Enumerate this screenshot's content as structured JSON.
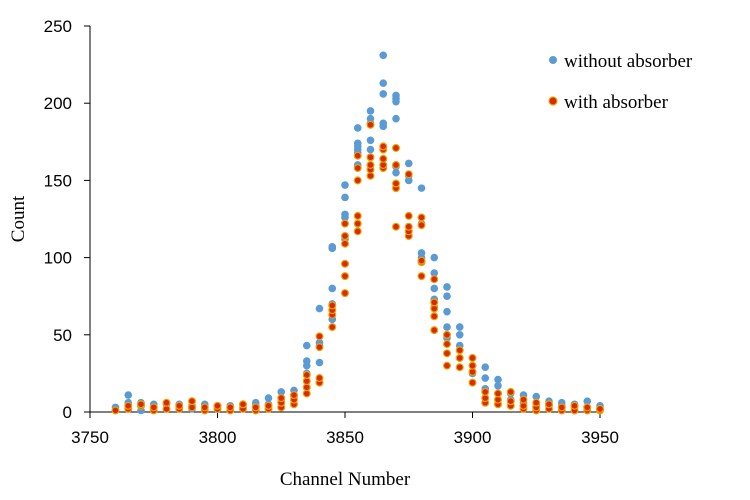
{
  "chart_data": {
    "type": "scatter",
    "title": "",
    "xlabel": "Channel Number",
    "ylabel": "Count",
    "xlim": [
      3750,
      3950
    ],
    "ylim": [
      0,
      250
    ],
    "xticks": [
      3750,
      3800,
      3850,
      3900,
      3950
    ],
    "yticks": [
      0,
      50,
      100,
      150,
      200,
      250
    ],
    "xtick_labels": [
      "3750",
      "3800",
      "3850",
      "3900",
      "3950"
    ],
    "ytick_labels": [
      "0",
      "50",
      "100",
      "150",
      "200",
      "250"
    ],
    "grid": false,
    "legend_position": "top-right",
    "series": [
      {
        "name": "without absorber",
        "color": "#5b9bd5",
        "points": [
          [
            3760,
            3
          ],
          [
            3765,
            11
          ],
          [
            3765,
            6
          ],
          [
            3770,
            1
          ],
          [
            3770,
            6
          ],
          [
            3775,
            3
          ],
          [
            3775,
            5
          ],
          [
            3780,
            2
          ],
          [
            3780,
            5
          ],
          [
            3785,
            3
          ],
          [
            3785,
            5
          ],
          [
            3790,
            2
          ],
          [
            3790,
            4
          ],
          [
            3795,
            2
          ],
          [
            3795,
            5
          ],
          [
            3800,
            2
          ],
          [
            3800,
            4
          ],
          [
            3805,
            2
          ],
          [
            3805,
            4
          ],
          [
            3810,
            3
          ],
          [
            3810,
            5
          ],
          [
            3815,
            4
          ],
          [
            3815,
            6
          ],
          [
            3820,
            5
          ],
          [
            3820,
            9
          ],
          [
            3825,
            7
          ],
          [
            3825,
            13
          ],
          [
            3830,
            10
          ],
          [
            3830,
            14
          ],
          [
            3835,
            25
          ],
          [
            3835,
            30
          ],
          [
            3835,
            33
          ],
          [
            3835,
            43
          ],
          [
            3840,
            32
          ],
          [
            3840,
            43
          ],
          [
            3840,
            45
          ],
          [
            3840,
            67
          ],
          [
            3845,
            60
          ],
          [
            3845,
            70
          ],
          [
            3845,
            80
          ],
          [
            3845,
            106
          ],
          [
            3845,
            107
          ],
          [
            3850,
            96
          ],
          [
            3850,
            112
          ],
          [
            3850,
            126
          ],
          [
            3850,
            128
          ],
          [
            3850,
            139
          ],
          [
            3850,
            147
          ],
          [
            3855,
            160
          ],
          [
            3855,
            168
          ],
          [
            3855,
            170
          ],
          [
            3855,
            172
          ],
          [
            3855,
            174
          ],
          [
            3855,
            184
          ],
          [
            3860,
            170
          ],
          [
            3860,
            176
          ],
          [
            3860,
            187
          ],
          [
            3860,
            190
          ],
          [
            3860,
            195
          ],
          [
            3865,
            185
          ],
          [
            3865,
            187
          ],
          [
            3865,
            206
          ],
          [
            3865,
            213
          ],
          [
            3865,
            231
          ],
          [
            3870,
            155
          ],
          [
            3870,
            159
          ],
          [
            3870,
            190
          ],
          [
            3870,
            201
          ],
          [
            3870,
            203
          ],
          [
            3870,
            205
          ],
          [
            3875,
            150
          ],
          [
            3875,
            153
          ],
          [
            3875,
            161
          ],
          [
            3880,
            100
          ],
          [
            3880,
            103
          ],
          [
            3880,
            122
          ],
          [
            3880,
            145
          ],
          [
            3885,
            68
          ],
          [
            3885,
            73
          ],
          [
            3885,
            80
          ],
          [
            3885,
            90
          ],
          [
            3885,
            100
          ],
          [
            3890,
            48
          ],
          [
            3890,
            55
          ],
          [
            3890,
            65
          ],
          [
            3890,
            75
          ],
          [
            3890,
            81
          ],
          [
            3895,
            40
          ],
          [
            3895,
            43
          ],
          [
            3895,
            50
          ],
          [
            3895,
            55
          ],
          [
            3900,
            25
          ],
          [
            3900,
            30
          ],
          [
            3900,
            35
          ],
          [
            3905,
            15
          ],
          [
            3905,
            22
          ],
          [
            3905,
            29
          ],
          [
            3910,
            12
          ],
          [
            3910,
            17
          ],
          [
            3910,
            21
          ],
          [
            3915,
            8
          ],
          [
            3915,
            12
          ],
          [
            3920,
            6
          ],
          [
            3920,
            11
          ],
          [
            3925,
            5
          ],
          [
            3925,
            10
          ],
          [
            3930,
            4
          ],
          [
            3930,
            7
          ],
          [
            3935,
            4
          ],
          [
            3935,
            6
          ],
          [
            3940,
            3
          ],
          [
            3940,
            5
          ],
          [
            3945,
            3
          ],
          [
            3945,
            7
          ],
          [
            3950,
            2
          ],
          [
            3950,
            4
          ]
        ]
      },
      {
        "name": "with absorber",
        "color": "#d62b00",
        "points": [
          [
            3760,
            1
          ],
          [
            3765,
            2
          ],
          [
            3765,
            4
          ],
          [
            3770,
            4
          ],
          [
            3770,
            5
          ],
          [
            3775,
            1
          ],
          [
            3775,
            3
          ],
          [
            3780,
            2
          ],
          [
            3780,
            6
          ],
          [
            3785,
            2
          ],
          [
            3785,
            4
          ],
          [
            3790,
            3
          ],
          [
            3790,
            7
          ],
          [
            3795,
            1
          ],
          [
            3795,
            3
          ],
          [
            3800,
            2
          ],
          [
            3800,
            4
          ],
          [
            3805,
            1
          ],
          [
            3805,
            3
          ],
          [
            3810,
            2
          ],
          [
            3810,
            5
          ],
          [
            3815,
            1
          ],
          [
            3815,
            3
          ],
          [
            3820,
            2
          ],
          [
            3820,
            4
          ],
          [
            3825,
            3
          ],
          [
            3825,
            6
          ],
          [
            3825,
            9
          ],
          [
            3830,
            5
          ],
          [
            3830,
            8
          ],
          [
            3830,
            11
          ],
          [
            3835,
            12
          ],
          [
            3835,
            16
          ],
          [
            3835,
            20
          ],
          [
            3835,
            24
          ],
          [
            3840,
            19
          ],
          [
            3840,
            22
          ],
          [
            3840,
            42
          ],
          [
            3840,
            49
          ],
          [
            3845,
            55
          ],
          [
            3845,
            63
          ],
          [
            3845,
            66
          ],
          [
            3845,
            69
          ],
          [
            3850,
            77
          ],
          [
            3850,
            88
          ],
          [
            3850,
            96
          ],
          [
            3850,
            109
          ],
          [
            3850,
            114
          ],
          [
            3850,
            122
          ],
          [
            3855,
            117
          ],
          [
            3855,
            122
          ],
          [
            3855,
            127
          ],
          [
            3855,
            150
          ],
          [
            3855,
            158
          ],
          [
            3855,
            166
          ],
          [
            3860,
            153
          ],
          [
            3860,
            157
          ],
          [
            3860,
            160
          ],
          [
            3860,
            165
          ],
          [
            3860,
            186
          ],
          [
            3865,
            158
          ],
          [
            3865,
            160
          ],
          [
            3865,
            164
          ],
          [
            3865,
            170
          ],
          [
            3865,
            172
          ],
          [
            3870,
            120
          ],
          [
            3870,
            145
          ],
          [
            3870,
            148
          ],
          [
            3870,
            160
          ],
          [
            3870,
            171
          ],
          [
            3875,
            114
          ],
          [
            3875,
            117
          ],
          [
            3875,
            120
          ],
          [
            3875,
            127
          ],
          [
            3875,
            154
          ],
          [
            3880,
            88
          ],
          [
            3880,
            97
          ],
          [
            3880,
            98
          ],
          [
            3880,
            121
          ],
          [
            3880,
            126
          ],
          [
            3885,
            53
          ],
          [
            3885,
            62
          ],
          [
            3885,
            67
          ],
          [
            3885,
            71
          ],
          [
            3885,
            86
          ],
          [
            3890,
            30
          ],
          [
            3890,
            38
          ],
          [
            3890,
            44
          ],
          [
            3890,
            50
          ],
          [
            3895,
            29
          ],
          [
            3895,
            35
          ],
          [
            3895,
            40
          ],
          [
            3900,
            19
          ],
          [
            3900,
            26
          ],
          [
            3900,
            30
          ],
          [
            3900,
            35
          ],
          [
            3905,
            6
          ],
          [
            3905,
            9
          ],
          [
            3905,
            13
          ],
          [
            3910,
            5
          ],
          [
            3910,
            8
          ],
          [
            3910,
            12
          ],
          [
            3915,
            4
          ],
          [
            3915,
            7
          ],
          [
            3915,
            13
          ],
          [
            3920,
            2
          ],
          [
            3920,
            4
          ],
          [
            3920,
            8
          ],
          [
            3925,
            1
          ],
          [
            3925,
            3
          ],
          [
            3925,
            6
          ],
          [
            3930,
            2
          ],
          [
            3930,
            5
          ],
          [
            3935,
            1
          ],
          [
            3935,
            3
          ],
          [
            3940,
            1
          ],
          [
            3940,
            4
          ],
          [
            3945,
            1
          ],
          [
            3945,
            3
          ],
          [
            3950,
            1
          ],
          [
            3950,
            2
          ]
        ]
      }
    ]
  }
}
